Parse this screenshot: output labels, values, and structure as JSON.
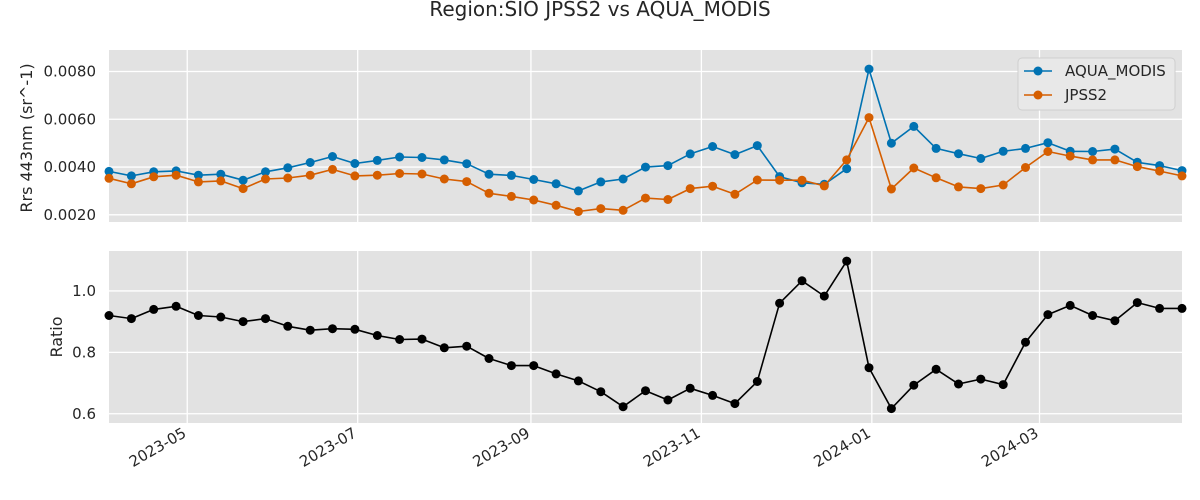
{
  "chart_data": {
    "type": "line",
    "title": "Region:SIO JPSS2 vs AQUA_MODIS",
    "x": [
      "2023-04-03",
      "2023-04-11",
      "2023-04-19",
      "2023-04-27",
      "2023-05-05",
      "2023-05-13",
      "2023-05-21",
      "2023-05-29",
      "2023-06-06",
      "2023-06-14",
      "2023-06-22",
      "2023-06-30",
      "2023-07-08",
      "2023-07-16",
      "2023-07-24",
      "2023-08-01",
      "2023-08-09",
      "2023-08-17",
      "2023-08-25",
      "2023-09-02",
      "2023-09-10",
      "2023-09-18",
      "2023-09-26",
      "2023-10-04",
      "2023-10-12",
      "2023-10-20",
      "2023-10-28",
      "2023-11-05",
      "2023-11-13",
      "2023-11-21",
      "2023-11-29",
      "2023-12-07",
      "2023-12-15",
      "2023-12-23",
      "2023-12-31",
      "2024-01-08",
      "2024-01-16",
      "2024-01-24",
      "2024-02-01",
      "2024-02-09",
      "2024-02-17",
      "2024-02-25",
      "2024-03-04",
      "2024-03-12",
      "2024-03-20",
      "2024-03-28",
      "2024-04-05",
      "2024-04-13",
      "2024-04-21"
    ],
    "x_ticks": [
      "2023-05",
      "2023-07",
      "2023-09",
      "2023-11",
      "2024-01",
      "2024-03"
    ],
    "grid": true,
    "panels": [
      {
        "ylabel": "Rrs 443nm (sr^-1)",
        "ylim": [
          0.0017,
          0.0089
        ],
        "yticks": [
          0.002,
          0.004,
          0.006,
          0.008
        ],
        "ytick_labels": [
          "0.0020",
          "0.0040",
          "0.0060",
          "0.0080"
        ],
        "legend_position": "top-right",
        "series": [
          {
            "name": "AQUA_MODIS",
            "color": "#0072b2",
            "values": [
              0.00382,
              0.00363,
              0.0038,
              0.00384,
              0.00366,
              0.0037,
              0.00345,
              0.0038,
              0.00397,
              0.00419,
              0.00444,
              0.00415,
              0.00428,
              0.00442,
              0.0044,
              0.0043,
              0.00414,
              0.0037,
              0.00365,
              0.00348,
              0.0033,
              0.003,
              0.00338,
              0.0035,
              0.004,
              0.00406,
              0.00455,
              0.00486,
              0.00452,
              0.0049,
              0.0036,
              0.00334,
              0.00328,
              0.00393,
              0.0081,
              0.005,
              0.0057,
              0.00478,
              0.00456,
              0.00436,
              0.00466,
              0.00478,
              0.00502,
              0.00466,
              0.00465,
              0.00475,
              0.0042,
              0.00406,
              0.00385
            ]
          },
          {
            "name": "JPSS2",
            "color": "#d55e00",
            "values": [
              0.00353,
              0.0033,
              0.00359,
              0.00366,
              0.00338,
              0.00342,
              0.0031,
              0.0035,
              0.00354,
              0.00366,
              0.0039,
              0.00363,
              0.00366,
              0.00373,
              0.00371,
              0.0035,
              0.00339,
              0.0029,
              0.00277,
              0.00262,
              0.0024,
              0.00214,
              0.00226,
              0.00219,
              0.0027,
              0.00264,
              0.0031,
              0.0032,
              0.00286,
              0.00346,
              0.00345,
              0.00345,
              0.00321,
              0.0043,
              0.00607,
              0.00308,
              0.00396,
              0.00355,
              0.00317,
              0.0031,
              0.00325,
              0.00398,
              0.00465,
              0.00446,
              0.0043,
              0.0043,
              0.00402,
              0.00383,
              0.00363
            ]
          }
        ]
      },
      {
        "ylabel": "Ratio",
        "ylim": [
          0.57,
          1.13
        ],
        "yticks": [
          0.6,
          0.8,
          1.0
        ],
        "ytick_labels": [
          "0.6",
          "0.8",
          "1.0"
        ],
        "series": [
          {
            "name": "",
            "color": "#000000",
            "values": [
              0.92,
              0.91,
              0.94,
              0.95,
              0.92,
              0.915,
              0.9,
              0.91,
              0.885,
              0.872,
              0.877,
              0.875,
              0.855,
              0.842,
              0.843,
              0.815,
              0.82,
              0.78,
              0.757,
              0.757,
              0.73,
              0.707,
              0.672,
              0.623,
              0.675,
              0.645,
              0.683,
              0.66,
              0.633,
              0.705,
              0.96,
              1.033,
              0.983,
              1.097,
              0.75,
              0.617,
              0.693,
              0.745,
              0.697,
              0.713,
              0.695,
              0.833,
              0.923,
              0.953,
              0.92,
              0.903,
              0.962,
              0.943,
              0.943
            ]
          }
        ]
      }
    ]
  }
}
